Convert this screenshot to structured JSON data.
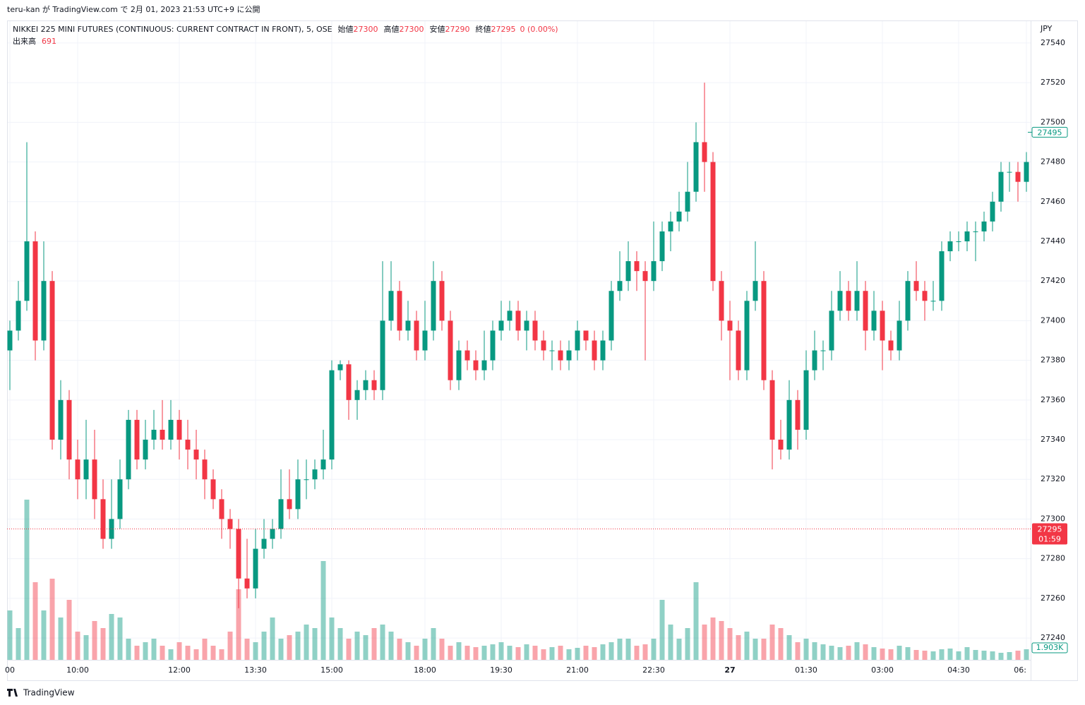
{
  "header": "teru-kan が TradingView.com で 2月 01, 2023 21:53 UTC+9 に公開",
  "footer": "TradingView",
  "chart_data": {
    "type": "candlestick",
    "title": "NIKKEI 225 MINI FUTURES (CONTINUOUS: CURRENT CONTRACT IN FRONT), 5, OSE",
    "ohlc_legend": [
      {
        "label": "始値",
        "value": 27300
      },
      {
        "label": "高値",
        "value": 27300
      },
      {
        "label": "安値",
        "value": 27290
      },
      {
        "label": "終値",
        "value": 27295
      }
    ],
    "change": "0 (0.00%)",
    "volume_title": "出来高",
    "volume_value": 691,
    "currency": "JPY",
    "up_color": "#089981",
    "down_color": "#f23645",
    "grid": true,
    "categories": [
      "00",
      null,
      null,
      null,
      null,
      null,
      null,
      null,
      "10:00",
      null,
      null,
      null,
      null,
      null,
      null,
      null,
      null,
      null,
      null,
      null,
      "12:00",
      null,
      null,
      null,
      null,
      null,
      null,
      null,
      null,
      "13:30",
      null,
      null,
      null,
      null,
      null,
      null,
      null,
      null,
      "15:00",
      null,
      null,
      null,
      null,
      null,
      null,
      null,
      null,
      null,
      null,
      "18:00",
      null,
      null,
      null,
      null,
      null,
      null,
      null,
      null,
      "19:30",
      null,
      null,
      null,
      null,
      null,
      null,
      null,
      null,
      "21:00",
      null,
      null,
      null,
      null,
      null,
      null,
      null,
      null,
      "22:30",
      null,
      null,
      null,
      null,
      null,
      null,
      null,
      null,
      "27",
      null,
      null,
      null,
      null,
      null,
      null,
      null,
      null,
      "01:30",
      null,
      null,
      null,
      null,
      null,
      null,
      null,
      null,
      "03:00",
      null,
      null,
      null,
      null,
      null,
      null,
      null,
      null,
      "04:30",
      null,
      null,
      null,
      null,
      null,
      null,
      null,
      "06:"
    ],
    "open": [
      27385,
      27395,
      27410,
      27440,
      27390,
      27420,
      27340,
      27360,
      27330,
      27320,
      27330,
      27310,
      27290,
      27300,
      27320,
      27350,
      27330,
      27340,
      27345,
      27340,
      27350,
      27340,
      27335,
      27330,
      27320,
      27310,
      27300,
      27295,
      27270,
      27265,
      27285,
      27290,
      27295,
      27310,
      27305,
      27320,
      27320,
      27325,
      27330,
      27375,
      27378,
      27360,
      27365,
      27370,
      27365,
      27400,
      27415,
      27395,
      27400,
      27385,
      27395,
      27420,
      27400,
      27370,
      27385,
      27380,
      27375,
      27380,
      27395,
      27400,
      27405,
      27395,
      27400,
      27390,
      27385,
      27385,
      27380,
      27385,
      27395,
      27390,
      27380,
      27390,
      27415,
      27420,
      27430,
      27425,
      27420,
      27430,
      27445,
      27450,
      27455,
      27465,
      27490,
      27480,
      27420,
      27400,
      27395,
      27375,
      27410,
      27420,
      27370,
      27340,
      27335,
      27360,
      27345,
      27375,
      27385,
      27385,
      27405,
      27415,
      27405,
      27415,
      27395,
      27405,
      27390,
      27385,
      27400,
      27420,
      27415,
      27410,
      27410,
      27435,
      27440,
      27440,
      27445,
      27445,
      27450,
      27460,
      27475,
      27475,
      27470
    ],
    "high": [
      27400,
      27420,
      27490,
      27445,
      27440,
      27425,
      27370,
      27365,
      27340,
      27350,
      27345,
      27320,
      27320,
      27330,
      27355,
      27355,
      27350,
      27355,
      27360,
      27360,
      27355,
      27350,
      27345,
      27335,
      27325,
      27315,
      27305,
      27300,
      27290,
      27295,
      27300,
      27300,
      27325,
      27325,
      27330,
      27330,
      27330,
      27345,
      27380,
      27380,
      27380,
      27370,
      27375,
      27375,
      27430,
      27430,
      27420,
      27410,
      27405,
      27410,
      27430,
      27425,
      27405,
      27390,
      27390,
      27385,
      27395,
      27400,
      27410,
      27410,
      27410,
      27405,
      27405,
      27395,
      27390,
      27390,
      27390,
      27400,
      27395,
      27395,
      27395,
      27420,
      27435,
      27440,
      27435,
      27430,
      27450,
      27450,
      27455,
      27465,
      27480,
      27500,
      27520,
      27485,
      27425,
      27410,
      27400,
      27415,
      27440,
      27425,
      27375,
      27350,
      27370,
      27365,
      27385,
      27395,
      27390,
      27415,
      27425,
      27420,
      27430,
      27420,
      27415,
      27410,
      27395,
      27410,
      27425,
      27430,
      27420,
      27420,
      27440,
      27445,
      27445,
      27450,
      27450,
      27455,
      27465,
      27480,
      27480,
      27480,
      27485
    ],
    "low": [
      27365,
      27390,
      27405,
      27380,
      27385,
      27335,
      27330,
      27320,
      27310,
      27310,
      27300,
      27285,
      27285,
      27295,
      27315,
      27325,
      27325,
      27335,
      27335,
      27335,
      27330,
      27325,
      27320,
      27310,
      27305,
      27290,
      27285,
      27255,
      27260,
      27260,
      27280,
      27285,
      27290,
      27300,
      27300,
      27310,
      27315,
      27320,
      27325,
      27370,
      27350,
      27350,
      27360,
      27360,
      27360,
      27395,
      27390,
      27390,
      27380,
      27380,
      27390,
      27395,
      27365,
      27365,
      27375,
      27370,
      27370,
      27375,
      27390,
      27395,
      27390,
      27385,
      27385,
      27380,
      27375,
      27375,
      27375,
      27380,
      27385,
      27375,
      27375,
      27385,
      27410,
      27415,
      27415,
      27380,
      27415,
      27425,
      27435,
      27445,
      27450,
      27460,
      27465,
      27415,
      27390,
      27370,
      27370,
      27370,
      27405,
      27365,
      27325,
      27330,
      27330,
      27335,
      27340,
      27370,
      27375,
      27380,
      27400,
      27400,
      27400,
      27385,
      27390,
      27375,
      27380,
      27380,
      27395,
      27410,
      27400,
      27405,
      27405,
      27430,
      27435,
      27435,
      27430,
      27440,
      27445,
      27455,
      27465,
      27460,
      27465
    ],
    "close": [
      27395,
      27410,
      27440,
      27390,
      27420,
      27340,
      27360,
      27330,
      27320,
      27330,
      27310,
      27290,
      27300,
      27320,
      27350,
      27330,
      27340,
      27345,
      27340,
      27350,
      27340,
      27335,
      27330,
      27320,
      27310,
      27300,
      27295,
      27270,
      27265,
      27285,
      27290,
      27295,
      27310,
      27305,
      27320,
      27320,
      27325,
      27330,
      27375,
      27378,
      27360,
      27365,
      27370,
      27365,
      27400,
      27415,
      27395,
      27400,
      27385,
      27395,
      27420,
      27400,
      27370,
      27385,
      27380,
      27375,
      27380,
      27395,
      27400,
      27405,
      27395,
      27400,
      27390,
      27385,
      27385,
      27380,
      27385,
      27395,
      27390,
      27380,
      27390,
      27415,
      27420,
      27430,
      27425,
      27420,
      27430,
      27445,
      27450,
      27455,
      27465,
      27490,
      27480,
      27420,
      27400,
      27395,
      27375,
      27410,
      27420,
      27370,
      27340,
      27335,
      27360,
      27345,
      27375,
      27385,
      27385,
      27405,
      27415,
      27405,
      27415,
      27395,
      27405,
      27390,
      27385,
      27400,
      27420,
      27415,
      27410,
      27410,
      27435,
      27440,
      27440,
      27445,
      27445,
      27450,
      27460,
      27475,
      27475,
      27470,
      27480
    ],
    "volume": [
      700,
      450,
      2270,
      1100,
      700,
      1150,
      600,
      850,
      400,
      350,
      550,
      450,
      650,
      600,
      300,
      200,
      250,
      300,
      200,
      150,
      250,
      200,
      150,
      300,
      200,
      150,
      400,
      1000,
      300,
      250,
      400,
      600,
      300,
      350,
      400,
      500,
      450,
      1400,
      600,
      450,
      300,
      400,
      350,
      450,
      500,
      400,
      300,
      250,
      200,
      300,
      450,
      300,
      200,
      250,
      200,
      180,
      200,
      220,
      250,
      200,
      180,
      220,
      200,
      150,
      180,
      200,
      150,
      170,
      200,
      180,
      220,
      250,
      300,
      300,
      200,
      220,
      300,
      850,
      500,
      300,
      450,
      1100,
      500,
      600,
      550,
      450,
      350,
      400,
      300,
      300,
      500,
      450,
      350,
      250,
      300,
      250,
      220,
      200,
      180,
      200,
      250,
      220,
      180,
      160,
      150,
      200,
      180,
      140,
      130,
      120,
      150,
      160,
      120,
      180,
      140,
      130,
      120,
      100,
      110,
      130,
      150
    ],
    "vlim": [
      0,
      3000
    ],
    "volume_tag": "1.903K",
    "ylim": [
      27229,
      27551
    ],
    "yticks": [
      27240,
      27260,
      27280,
      27300,
      27320,
      27340,
      27360,
      27380,
      27400,
      27420,
      27440,
      27460,
      27480,
      27500,
      27520,
      27540
    ],
    "mark_price": 27495,
    "last_price": 27295,
    "countdown": "01:59"
  }
}
